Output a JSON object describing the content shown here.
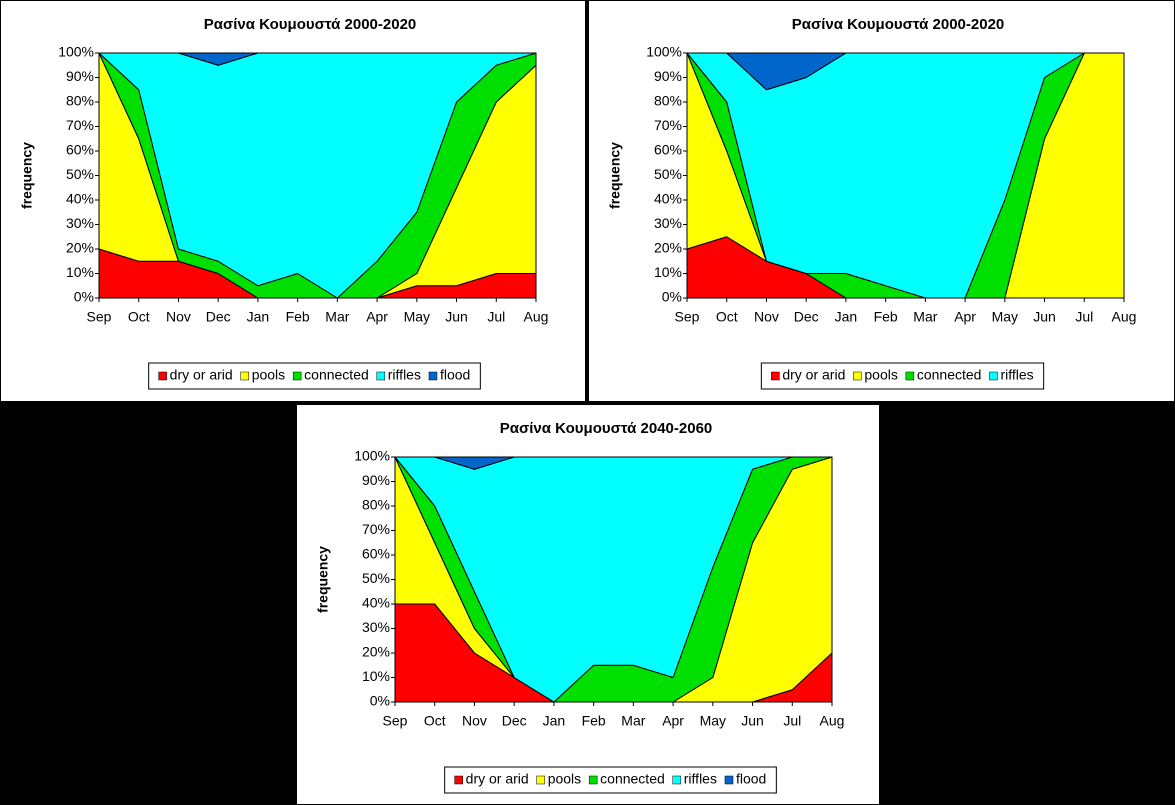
{
  "chart_data": [
    {
      "type": "stacked_area",
      "title": "Ρασίνα Κουμουστά  2000-2020",
      "y_label": "frequency",
      "categories": [
        "Sep",
        "Oct",
        "Nov",
        "Dec",
        "Jan",
        "Feb",
        "Mar",
        "Apr",
        "May",
        "Jun",
        "Jul",
        "Aug"
      ],
      "series": [
        {
          "name": "dry or arid",
          "color": "#ff0000",
          "values": [
            20,
            15,
            15,
            10,
            0,
            0,
            0,
            0,
            5,
            5,
            10,
            10
          ]
        },
        {
          "name": "pools",
          "color": "#ffff00",
          "values": [
            80,
            50,
            0,
            0,
            0,
            0,
            0,
            0,
            5,
            40,
            70,
            85
          ]
        },
        {
          "name": "connected",
          "color": "#00e000",
          "values": [
            0,
            20,
            5,
            5,
            5,
            10,
            0,
            15,
            25,
            35,
            15,
            5
          ]
        },
        {
          "name": "riffles",
          "color": "#00ffff",
          "values": [
            0,
            15,
            80,
            80,
            95,
            90,
            100,
            85,
            65,
            20,
            5,
            0
          ]
        },
        {
          "name": "flood",
          "color": "#0066cc",
          "values": [
            0,
            0,
            0,
            5,
            0,
            0,
            0,
            0,
            0,
            0,
            0,
            0
          ]
        }
      ],
      "ylim": [
        0,
        100
      ],
      "yticks": [
        {
          "value": 0,
          "label": "0%"
        },
        {
          "value": 10,
          "label": "10%"
        },
        {
          "value": 20,
          "label": "20%"
        },
        {
          "value": 30,
          "label": "30%"
        },
        {
          "value": 40,
          "label": "40%"
        },
        {
          "value": 50,
          "label": "50%"
        },
        {
          "value": 60,
          "label": "60%"
        },
        {
          "value": 70,
          "label": "70%"
        },
        {
          "value": 80,
          "label": "80%"
        },
        {
          "value": 90,
          "label": "90%"
        },
        {
          "value": 100,
          "label": "100%"
        }
      ],
      "legend": "bottom"
    },
    {
      "type": "stacked_area",
      "title": "Ρασίνα Κουμουστά  2000-2020",
      "y_label": "frequency",
      "categories": [
        "Sep",
        "Oct",
        "Nov",
        "Dec",
        "Jan",
        "Feb",
        "Mar",
        "Apr",
        "May",
        "Jun",
        "Jul",
        "Aug"
      ],
      "series": [
        {
          "name": "dry or arid",
          "color": "#ff0000",
          "values": [
            20,
            25,
            15,
            10,
            0,
            0,
            0,
            0,
            0,
            0,
            0,
            0
          ]
        },
        {
          "name": "pools",
          "color": "#ffff00",
          "values": [
            80,
            35,
            0,
            0,
            0,
            0,
            0,
            0,
            0,
            65,
            100,
            100
          ]
        },
        {
          "name": "connected",
          "color": "#00e000",
          "values": [
            0,
            20,
            0,
            0,
            10,
            5,
            0,
            0,
            40,
            25,
            0,
            0
          ]
        },
        {
          "name": "riffles",
          "color": "#00ffff",
          "values": [
            0,
            20,
            70,
            80,
            90,
            95,
            100,
            100,
            60,
            10,
            0,
            0
          ]
        },
        {
          "color": "#0066cc",
          "values": [
            0,
            0,
            15,
            10,
            0,
            0,
            0,
            0,
            0,
            0,
            0,
            0
          ]
        }
      ],
      "ylim": [
        0,
        100
      ],
      "yticks": [
        {
          "value": 0,
          "label": "0%"
        },
        {
          "value": 10,
          "label": "10%"
        },
        {
          "value": 20,
          "label": "20%"
        },
        {
          "value": 30,
          "label": "30%"
        },
        {
          "value": 40,
          "label": "40%"
        },
        {
          "value": 50,
          "label": "50%"
        },
        {
          "value": 60,
          "label": "60%"
        },
        {
          "value": 70,
          "label": "70%"
        },
        {
          "value": 80,
          "label": "80%"
        },
        {
          "value": 90,
          "label": "90%"
        },
        {
          "value": 100,
          "label": "100%"
        }
      ],
      "legend": "bottom"
    },
    {
      "type": "stacked_area",
      "title": "Ρασίνα Κουμουστά 2040-2060",
      "y_label": "frequency",
      "categories": [
        "Sep",
        "Oct",
        "Nov",
        "Dec",
        "Jan",
        "Feb",
        "Mar",
        "Apr",
        "May",
        "Jun",
        "Jul",
        "Aug"
      ],
      "series": [
        {
          "name": "dry or arid",
          "color": "#ff0000",
          "values": [
            40,
            40,
            20,
            10,
            0,
            0,
            0,
            0,
            0,
            0,
            5,
            20
          ]
        },
        {
          "name": "pools",
          "color": "#ffff00",
          "values": [
            60,
            25,
            10,
            0,
            0,
            0,
            0,
            0,
            10,
            65,
            90,
            80
          ]
        },
        {
          "name": "connected",
          "color": "#00e000",
          "values": [
            0,
            15,
            15,
            0,
            0,
            15,
            15,
            10,
            45,
            30,
            5,
            0
          ]
        },
        {
          "name": "riffles",
          "color": "#00ffff",
          "values": [
            0,
            20,
            50,
            90,
            100,
            85,
            85,
            90,
            45,
            5,
            0,
            0
          ]
        },
        {
          "name": "flood",
          "color": "#0066cc",
          "values": [
            0,
            0,
            5,
            0,
            0,
            0,
            0,
            0,
            0,
            0,
            0,
            0
          ]
        }
      ],
      "ylim": [
        0,
        100
      ],
      "yticks": [
        {
          "value": 0,
          "label": "0%"
        },
        {
          "value": 10,
          "label": "10%"
        },
        {
          "value": 20,
          "label": "20%"
        },
        {
          "value": 30,
          "label": "30%"
        },
        {
          "value": 40,
          "label": "40%"
        },
        {
          "value": 50,
          "label": "50%"
        },
        {
          "value": 60,
          "label": "60%"
        },
        {
          "value": 70,
          "label": "70%"
        },
        {
          "value": 80,
          "label": "80%"
        },
        {
          "value": 90,
          "label": "90%"
        },
        {
          "value": 100,
          "label": "100%"
        }
      ],
      "legend": "bottom"
    }
  ]
}
